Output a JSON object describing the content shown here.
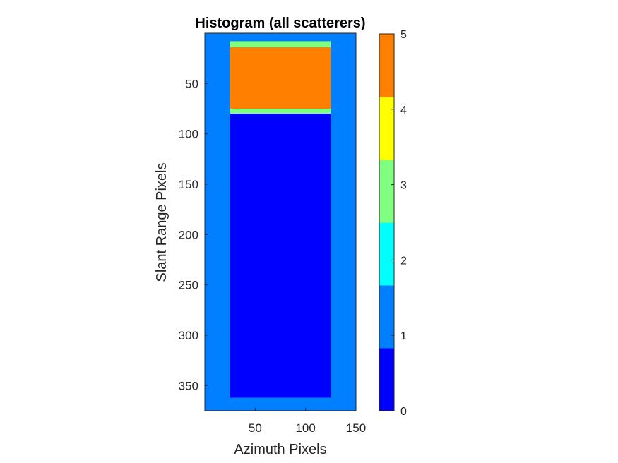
{
  "chart_data": {
    "type": "heatmap",
    "title": "Histogram (all scatterers)",
    "xlabel": "Azimuth Pixels",
    "ylabel": "Slant Range Pixels",
    "xlim": [
      0,
      150
    ],
    "ylim": [
      0,
      375
    ],
    "y_direction": "reverse",
    "x_ticks": [
      50,
      100,
      150
    ],
    "y_ticks": [
      50,
      100,
      150,
      200,
      250,
      300,
      350
    ],
    "background_value": 1,
    "regions": [
      {
        "x": [
          25,
          125
        ],
        "y": [
          8,
          14
        ],
        "value": 3
      },
      {
        "x": [
          25,
          125
        ],
        "y": [
          14,
          75
        ],
        "value": 5
      },
      {
        "x": [
          25,
          125
        ],
        "y": [
          75,
          80
        ],
        "value": 3
      },
      {
        "x": [
          25,
          125
        ],
        "y": [
          80,
          362
        ],
        "value": 0
      }
    ],
    "colorbar": {
      "range": [
        0,
        5
      ],
      "ticks": [
        0,
        1,
        2,
        3,
        4,
        5
      ],
      "colors": [
        "#0000ff",
        "#0080ff",
        "#00ffff",
        "#80ff80",
        "#ffff00",
        "#ff8000"
      ]
    }
  }
}
